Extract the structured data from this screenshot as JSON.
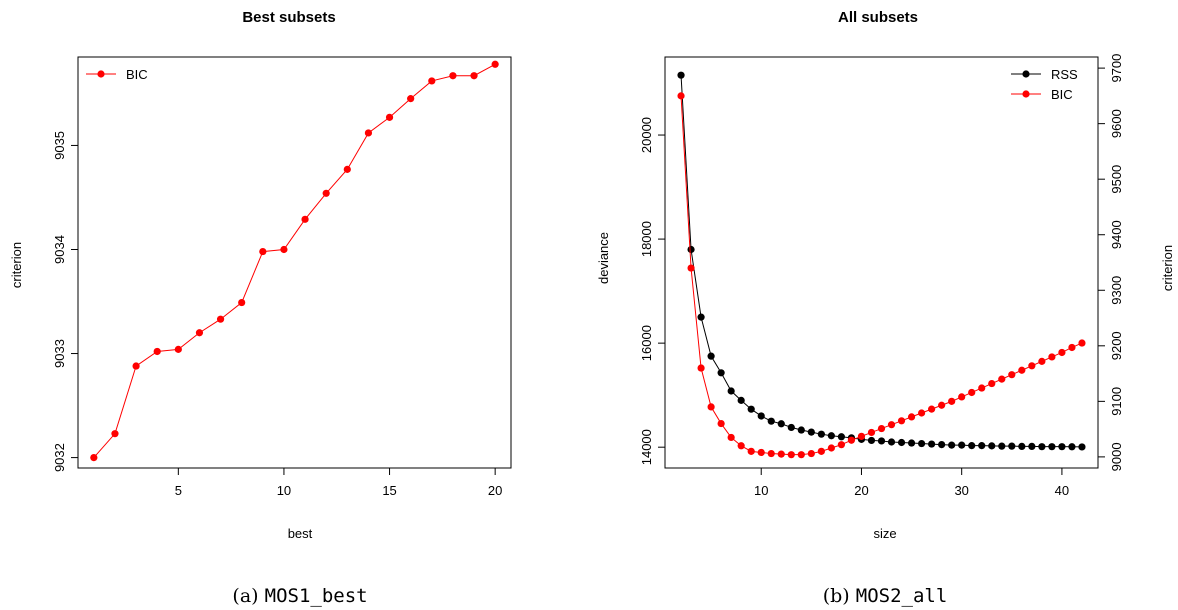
{
  "captions": {
    "a": {
      "prefix": "(a) ",
      "code": "MOS1_best"
    },
    "b": {
      "prefix": "(b) ",
      "code": "MOS2_all"
    }
  },
  "colors": {
    "rss": "#000000",
    "bic": "#ff0000",
    "axis": "#000000"
  },
  "chart_data": [
    {
      "type": "line",
      "title": "Best subsets",
      "xlabel": "best",
      "ylabel": "criterion",
      "xlim": [
        0.25,
        20.75
      ],
      "ylim": [
        9031.9,
        9035.85
      ],
      "xticks": [
        5,
        10,
        15,
        20
      ],
      "yticks": [
        9032,
        9033,
        9034,
        9035
      ],
      "legend": {
        "position": "top-left",
        "entries": [
          "BIC"
        ]
      },
      "grid": false,
      "series": [
        {
          "name": "BIC",
          "color": "#ff0000",
          "x": [
            1,
            2,
            3,
            4,
            5,
            6,
            7,
            8,
            9,
            10,
            11,
            12,
            13,
            14,
            15,
            16,
            17,
            18,
            19,
            20
          ],
          "y": [
            9032.0,
            9032.23,
            9032.88,
            9033.02,
            9033.04,
            9033.2,
            9033.33,
            9033.49,
            9033.98,
            9034.0,
            9034.29,
            9034.54,
            9034.77,
            9035.12,
            9035.27,
            9035.45,
            9035.62,
            9035.67,
            9035.67,
            9035.78
          ]
        }
      ]
    },
    {
      "type": "line",
      "title": "All subsets",
      "xlabel": "size",
      "ylabel": "deviance",
      "y2label": "criterion",
      "xlim": [
        0.4,
        43.6
      ],
      "ylim": [
        13600,
        21500
      ],
      "y2lim": [
        8980,
        9720
      ],
      "xticks": [
        10,
        20,
        30,
        40
      ],
      "yticks": [
        14000,
        16000,
        18000,
        20000
      ],
      "y2ticks": [
        9000,
        9100,
        9200,
        9300,
        9400,
        9500,
        9600,
        9700
      ],
      "legend": {
        "position": "top-right",
        "entries": [
          "RSS",
          "BIC"
        ]
      },
      "grid": false,
      "series": [
        {
          "name": "RSS",
          "axis": "left",
          "color": "#000000",
          "x": [
            2,
            3,
            4,
            5,
            6,
            7,
            8,
            9,
            10,
            11,
            12,
            13,
            14,
            15,
            16,
            17,
            18,
            19,
            20,
            21,
            22,
            23,
            24,
            25,
            26,
            27,
            28,
            29,
            30,
            31,
            32,
            33,
            34,
            35,
            36,
            37,
            38,
            39,
            40,
            41,
            42
          ],
          "y": [
            21150,
            17800,
            16500,
            15750,
            15430,
            15080,
            14900,
            14730,
            14600,
            14500,
            14450,
            14380,
            14330,
            14290,
            14250,
            14220,
            14200,
            14180,
            14150,
            14130,
            14120,
            14100,
            14090,
            14080,
            14070,
            14060,
            14050,
            14040,
            14040,
            14030,
            14030,
            14025,
            14020,
            14020,
            14015,
            14015,
            14010,
            14010,
            14010,
            14008,
            14005
          ]
        },
        {
          "name": "BIC",
          "axis": "right",
          "color": "#ff0000",
          "x": [
            2,
            3,
            4,
            5,
            6,
            7,
            8,
            9,
            10,
            11,
            12,
            13,
            14,
            15,
            16,
            17,
            18,
            19,
            20,
            21,
            22,
            23,
            24,
            25,
            26,
            27,
            28,
            29,
            30,
            31,
            32,
            33,
            34,
            35,
            36,
            37,
            38,
            39,
            40,
            41,
            42
          ],
          "y": [
            9650,
            9340,
            9160,
            9090,
            9060,
            9035,
            9020,
            9010,
            9008,
            9006,
            9005,
            9004,
            9004,
            9006,
            9010,
            9016,
            9022,
            9030,
            9037,
            9044,
            9051,
            9058,
            9065,
            9072,
            9079,
            9086,
            9093,
            9100,
            9108,
            9116,
            9124,
            9132,
            9140,
            9148,
            9156,
            9164,
            9172,
            9180,
            9188,
            9197,
            9205
          ]
        }
      ]
    }
  ]
}
